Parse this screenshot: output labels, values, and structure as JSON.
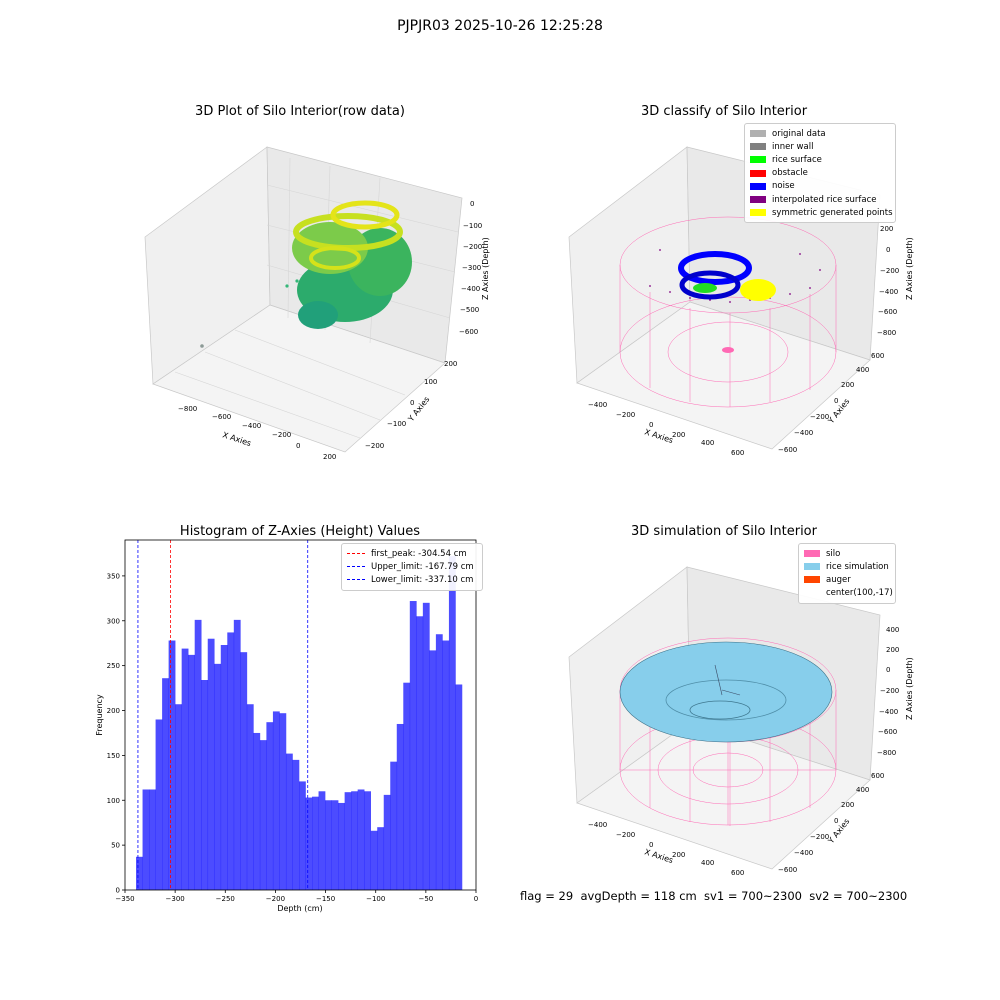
{
  "figure": {
    "suptitle": "PJPJR03 2025-10-26 12:25:28",
    "footer": "flag = 29  avgDepth = 118 cm  sv1 = 700~2300  sv2 = 700~2300"
  },
  "panels": {
    "raw": {
      "title": "3D Plot of Silo Interior(row data)",
      "xlabel": "X Axies",
      "ylabel": "Y Axies",
      "zlabel": "Z Axies (Depth)",
      "xticks": [
        "−800",
        "−600",
        "−400",
        "−200",
        "0",
        "200"
      ],
      "yticks": [
        "−200",
        "−100",
        "0",
        "100",
        "200"
      ],
      "zticks": [
        "0",
        "−100",
        "−200",
        "−300",
        "−400",
        "−500",
        "−600"
      ]
    },
    "classify": {
      "title": "3D classify of Silo Interior",
      "xlabel": "X Axies",
      "ylabel": "Y Axies",
      "zlabel": "Z Axies (Depth)",
      "xticks": [
        "−400",
        "−200",
        "0",
        "200",
        "400",
        "600"
      ],
      "yticks": [
        "−600",
        "−400",
        "−200",
        "0",
        "200",
        "400",
        "600"
      ],
      "zticks": [
        "200",
        "0",
        "−200",
        "−400",
        "−600",
        "−800"
      ],
      "legend": [
        {
          "label": "original data",
          "color": "#b0b0b0"
        },
        {
          "label": "inner wall",
          "color": "#808080"
        },
        {
          "label": "rice surface",
          "color": "#00ff00"
        },
        {
          "label": "obstacle",
          "color": "#ff0000"
        },
        {
          "label": "noise",
          "color": "#0000ff"
        },
        {
          "label": "interpolated rice surface",
          "color": "#800080"
        },
        {
          "label": "symmetric generated points",
          "color": "#ffff00"
        }
      ]
    },
    "simulation": {
      "title": "3D simulation of Silo Interior",
      "xlabel": "X Axies",
      "ylabel": "Y Axies",
      "zlabel": "Z Axies (Depth)",
      "xticks": [
        "−400",
        "−200",
        "0",
        "200",
        "400",
        "600"
      ],
      "yticks": [
        "−600",
        "−400",
        "−200",
        "0",
        "200",
        "400",
        "600"
      ],
      "zticks": [
        "400",
        "200",
        "0",
        "−200",
        "−400",
        "−600",
        "−800"
      ],
      "legend": [
        {
          "label": "silo",
          "color": "#ff69b4"
        },
        {
          "label": "rice simulation",
          "color": "#87ceeb"
        },
        {
          "label": "auger",
          "color": "#ff4500"
        },
        {
          "label": "center(100,-17)",
          "color": ""
        }
      ]
    }
  },
  "chart_data": [
    {
      "type": "bar",
      "title": "Histogram of Z-Axies (Height) Values",
      "xlabel": "Depth (cm)",
      "ylabel": "Frequency",
      "xlim": [
        -350,
        0
      ],
      "ylim": [
        0,
        390
      ],
      "xticks": [
        -350,
        -300,
        -250,
        -200,
        -150,
        -100,
        -50,
        0
      ],
      "yticks": [
        0,
        50,
        100,
        150,
        200,
        250,
        300,
        350
      ],
      "bar_color": "#0000ff",
      "bin_width": 6.5,
      "bin_starts": [
        -339,
        -332.5,
        -326,
        -319.5,
        -313,
        -306.5,
        -300,
        -293.5,
        -287,
        -280.5,
        -274,
        -267.5,
        -261,
        -254.5,
        -248,
        -241.5,
        -235,
        -228.5,
        -222,
        -215.5,
        -209,
        -202.5,
        -196,
        -189.5,
        -183,
        -176.5,
        -170,
        -163.5,
        -157,
        -150.5,
        -144,
        -137.5,
        -131,
        -124.5,
        -118,
        -111.5,
        -105,
        -98.5,
        -92,
        -85.5,
        -79,
        -72.5,
        -66,
        -59.5,
        -53,
        -46.5,
        -40,
        -33.5,
        -27,
        -20.5
      ],
      "values": [
        37,
        112,
        112,
        190,
        236,
        278,
        207,
        269,
        262,
        301,
        234,
        280,
        252,
        273,
        287,
        301,
        265,
        207,
        175,
        167,
        187,
        199,
        197,
        152,
        145,
        121,
        103,
        104,
        110,
        100,
        100,
        97,
        109,
        110,
        112,
        110,
        66,
        70,
        106,
        143,
        185,
        231,
        322,
        305,
        320,
        267,
        285,
        278,
        372,
        229
      ],
      "lines": [
        {
          "name": "first_peak: -304.54 cm",
          "x": -304.54,
          "color": "#ff0000"
        },
        {
          "name": "Upper_limit: -167.79 cm",
          "x": -167.79,
          "color": "#0000ff"
        },
        {
          "name": "Lower_limit: -337.10 cm",
          "x": -337.1,
          "color": "#0000ff"
        }
      ],
      "legend_position": "top-right"
    }
  ]
}
